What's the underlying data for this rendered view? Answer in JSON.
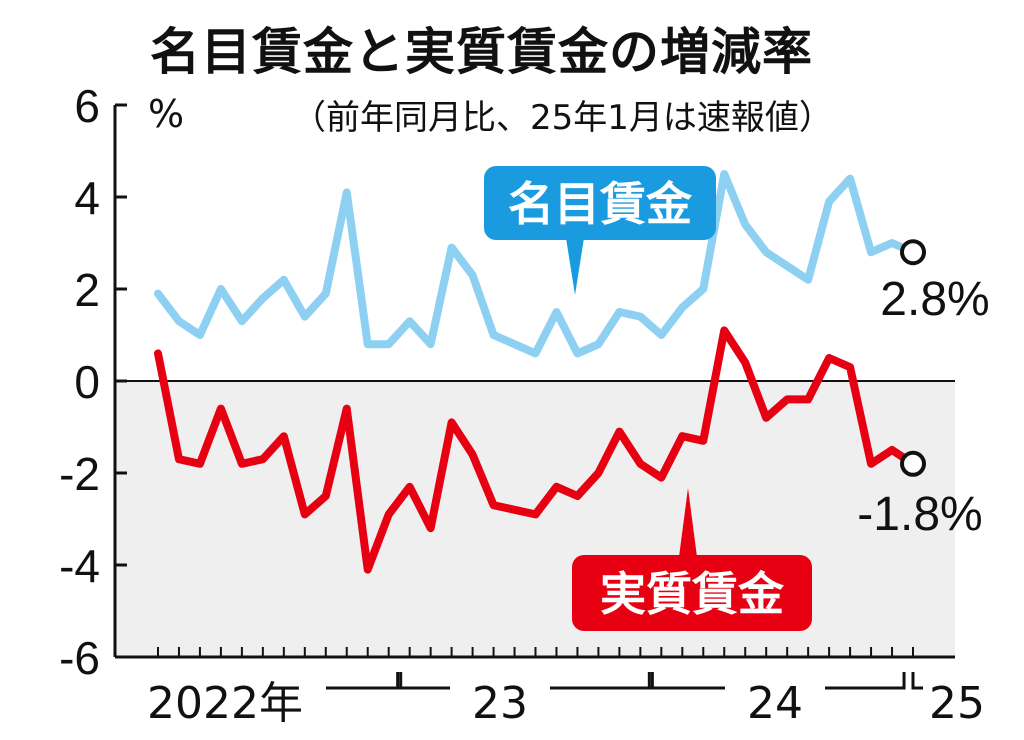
{
  "header": {
    "title": "名目賃金と実質賃金の増減率",
    "subtitle": "（前年同月比、25年1月は速報値）",
    "unit": "%"
  },
  "chart_data": {
    "type": "line",
    "title": "名目賃金と実質賃金の増減率",
    "subtitle": "（前年同月比、25年1月は速報値）",
    "ylabel": "%",
    "ylim": [
      -6,
      6
    ],
    "y_ticks": [
      "6",
      "4",
      "2",
      "0",
      "-2",
      "-4",
      "-6"
    ],
    "x_group_labels": [
      {
        "label": "2022年",
        "from": "2022-01",
        "to": "2022-12"
      },
      {
        "label": "23",
        "from": "2023-01",
        "to": "2023-12"
      },
      {
        "label": "24",
        "from": "2024-01",
        "to": "2024-12"
      },
      {
        "label": "25",
        "from": "2025-01",
        "to": "2025-01"
      }
    ],
    "x": [
      "2022-01",
      "2022-02",
      "2022-03",
      "2022-04",
      "2022-05",
      "2022-06",
      "2022-07",
      "2022-08",
      "2022-09",
      "2022-10",
      "2022-11",
      "2022-12",
      "2023-01",
      "2023-02",
      "2023-03",
      "2023-04",
      "2023-05",
      "2023-06",
      "2023-07",
      "2023-08",
      "2023-09",
      "2023-10",
      "2023-11",
      "2023-12",
      "2024-01",
      "2024-02",
      "2024-03",
      "2024-04",
      "2024-05",
      "2024-06",
      "2024-07",
      "2024-08",
      "2024-09",
      "2024-10",
      "2024-11",
      "2024-12",
      "2025-01"
    ],
    "series": [
      {
        "name": "名目賃金",
        "color": "#8ed0f2",
        "label_color": "#1a9be0",
        "values": [
          1.9,
          1.3,
          1.0,
          2.0,
          1.3,
          1.8,
          2.2,
          1.4,
          1.9,
          4.1,
          0.8,
          0.8,
          1.3,
          0.8,
          2.9,
          2.3,
          1.0,
          0.8,
          0.6,
          1.5,
          0.6,
          0.8,
          1.5,
          1.4,
          1.0,
          1.6,
          2.0,
          4.5,
          3.4,
          2.8,
          2.5,
          2.2,
          3.9,
          4.4,
          2.8,
          3.0,
          2.8
        ]
      },
      {
        "name": "実質賃金",
        "color": "#e60012",
        "label_color": "#e60012",
        "values": [
          0.6,
          -1.7,
          -1.8,
          -0.6,
          -1.8,
          -1.7,
          -1.2,
          -2.9,
          -2.5,
          -0.6,
          -4.1,
          -2.9,
          -2.3,
          -3.2,
          -0.9,
          -1.6,
          -2.7,
          -2.8,
          -2.9,
          -2.3,
          -2.5,
          -2.0,
          -1.1,
          -1.8,
          -2.1,
          -1.2,
          -1.3,
          1.1,
          0.4,
          -0.8,
          -0.4,
          -0.4,
          0.5,
          0.3,
          -1.8,
          -1.5,
          -1.8
        ]
      }
    ],
    "end_labels": [
      "2.8%",
      "-1.8%"
    ],
    "callouts": [
      "名目賃金",
      "実質賃金"
    ],
    "shaded_region": "below zero"
  }
}
